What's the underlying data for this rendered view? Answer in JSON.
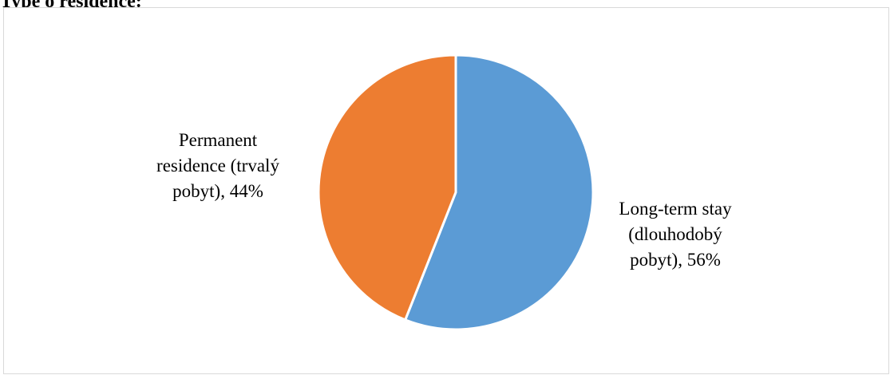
{
  "heading": "Type o residence:",
  "chart_data": {
    "type": "pie",
    "title": "",
    "slices": [
      {
        "label_lines": [
          "Long-term stay",
          "(dlouhodobý",
          "pobyt), 56%"
        ],
        "category": "Long-term stay (dlouhodobý pobyt)",
        "value": 56,
        "color": "#5b9bd5"
      },
      {
        "label_lines": [
          "Permanent",
          "residence (trvalý",
          "pobyt), 44%"
        ],
        "category": "Permanent residence (trvalý pobyt)",
        "value": 44,
        "color": "#ed7d31"
      }
    ],
    "legend": "none",
    "start_angle": "12 o'clock, clockwise"
  }
}
